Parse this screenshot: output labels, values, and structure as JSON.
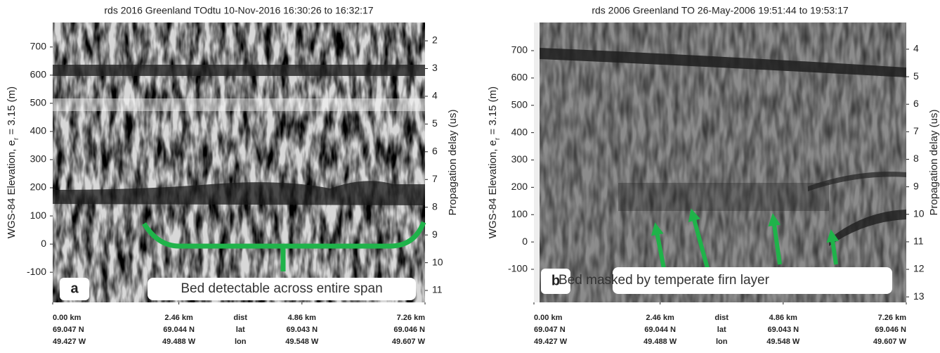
{
  "chart_data": [
    {
      "type": "radargram",
      "title": "rds 2016 Greenland TOdtu 10-Nov-2016 16:30:26 to 16:32:17",
      "ylabel_parts": [
        "WGS-84 Elevation, e",
        "r",
        " = 3.15 (m)"
      ],
      "y2label": "Propagation delay (us)",
      "ylim": [
        -207,
        787
      ],
      "yticks": [
        -100,
        0,
        100,
        200,
        300,
        400,
        500,
        600,
        700
      ],
      "y2lim": [
        1.34,
        11.43
      ],
      "y2ticks": [
        2,
        3,
        4,
        5,
        6,
        7,
        8,
        9,
        10,
        11
      ],
      "xlim": [
        0,
        7.26
      ],
      "xticks": [
        {
          "value": 0,
          "label": "0.00 km"
        },
        {
          "value": 2.46,
          "label": "2.46 km"
        },
        {
          "value": 4.86,
          "label": "4.86 km"
        },
        {
          "value": 7.26,
          "label": "7.26 km"
        }
      ],
      "lat_labels": [
        "69.047 N",
        "69.044 N",
        "69.043 N",
        "69.046 N"
      ],
      "lon_labels": [
        "49.427 W",
        "49.488 W",
        "49.548 W",
        "49.607 W"
      ],
      "row_names": [
        "dist",
        "lat",
        "lon"
      ],
      "panel_label": "a",
      "annotation": "Bed detectable across entire span"
    },
    {
      "type": "radargram",
      "title": "rds 2006 Greenland TO 26-May-2006 19:51:44 to 19:53:17",
      "ylabel_parts": [
        "WGS-84 Elevation, e",
        "r",
        " = 3.15 (m)"
      ],
      "y2label": "Propagation delay (us)",
      "ylim": [
        -221,
        803
      ],
      "yticks": [
        -100,
        0,
        100,
        200,
        300,
        400,
        500,
        600,
        700
      ],
      "y2lim": [
        3.03,
        13.2
      ],
      "y2ticks": [
        4,
        5,
        6,
        7,
        8,
        9,
        10,
        11,
        12,
        13
      ],
      "xlim": [
        0,
        7.26
      ],
      "xticks": [
        {
          "value": 0,
          "label": "0.00 km"
        },
        {
          "value": 2.46,
          "label": "2.46 km"
        },
        {
          "value": 4.86,
          "label": "4.86 km"
        },
        {
          "value": 7.26,
          "label": "7.26 km"
        }
      ],
      "lat_labels": [
        "69.047 N",
        "69.044 N",
        "69.043 N",
        "69.046 N"
      ],
      "lon_labels": [
        "49.427 W",
        "49.488 W",
        "49.548 W",
        "49.607 W"
      ],
      "row_names": [
        "dist",
        "lat",
        "lon"
      ],
      "panel_label": "b",
      "annotation": "Bed masked by temperate firn layer"
    }
  ]
}
